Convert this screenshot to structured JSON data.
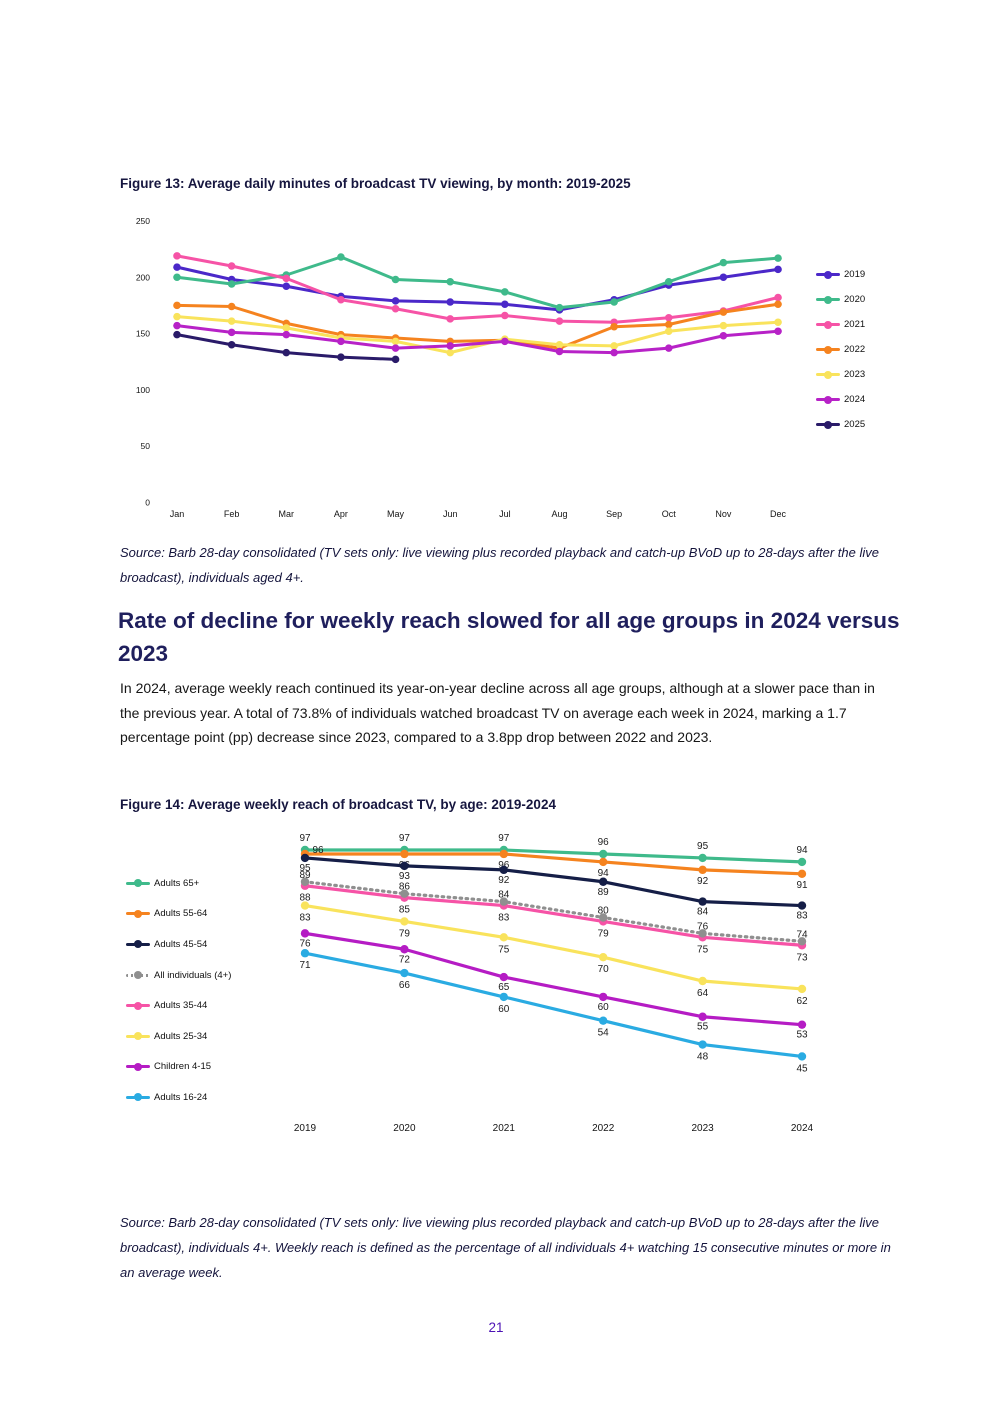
{
  "page": {
    "number": "21"
  },
  "section": {
    "heading": "Rate of decline for weekly reach slowed for all age groups in 2024 versus 2023",
    "body": "In 2024, average weekly reach continued its year-on-year decline across all age groups, although at a slower pace than in the previous year. A total of 73.8% of individuals watched broadcast TV on average each week in 2024, marking a 1.7 percentage point (pp) decrease since 2023, compared to a 3.8pp drop between 2022 and 2023."
  },
  "chart_data": [
    {
      "type": "line",
      "title": "Figure 13: Average daily minutes of broadcast TV viewing, by month: 2019-2025",
      "source": "Source: Barb 28-day consolidated (TV sets only: live viewing plus recorded playback and catch-up BVoD up to 28-days after the live broadcast), individuals aged 4+.",
      "categories": [
        "Jan",
        "Feb",
        "Mar",
        "Apr",
        "May",
        "Jun",
        "Jul",
        "Aug",
        "Sep",
        "Oct",
        "Nov",
        "Dec"
      ],
      "ylabel": "",
      "xlabel": "",
      "ylim": [
        0,
        250
      ],
      "yticks": [
        0,
        50,
        100,
        150,
        200,
        250
      ],
      "grid": false,
      "legend_position": "right",
      "series": [
        {
          "name": "2019",
          "color": "#4b28c9",
          "values": [
            209,
            198,
            192,
            183,
            179,
            178,
            176,
            171,
            180,
            193,
            200,
            207
          ]
        },
        {
          "name": "2020",
          "color": "#3fba8b",
          "values": [
            200,
            194,
            202,
            218,
            198,
            196,
            187,
            173,
            178,
            196,
            213,
            217
          ]
        },
        {
          "name": "2021",
          "color": "#f653a6",
          "values": [
            219,
            210,
            199,
            180,
            172,
            163,
            166,
            161,
            160,
            164,
            170,
            182
          ]
        },
        {
          "name": "2022",
          "color": "#f5831f",
          "values": [
            175,
            174,
            159,
            149,
            146,
            143,
            144,
            137,
            156,
            158,
            169,
            176
          ]
        },
        {
          "name": "2023",
          "color": "#f9e35c",
          "values": [
            165,
            161,
            155,
            146,
            143,
            133,
            145,
            140,
            139,
            152,
            157,
            160
          ]
        },
        {
          "name": "2024",
          "color": "#b722c7",
          "values": [
            157,
            151,
            149,
            143,
            137,
            139,
            143,
            134,
            133,
            137,
            148,
            152
          ]
        },
        {
          "name": "2025",
          "color": "#2a1b69",
          "values": [
            149,
            140,
            133,
            129,
            127
          ]
        }
      ]
    },
    {
      "type": "line",
      "title": "Figure 14: Average weekly reach of broadcast TV, by age: 2019-2024",
      "source": "Source: Barb 28-day consolidated (TV sets only: live viewing plus recorded playback and catch-up BVoD up to 28-days after the live broadcast), individuals 4+. Weekly reach is defined as the percentage of all individuals 4+ watching 15 consecutive minutes or more in an average week.",
      "categories": [
        "2019",
        "2020",
        "2021",
        "2022",
        "2023",
        "2024"
      ],
      "ylabel": "",
      "xlabel": "",
      "ylim": [
        40,
        100
      ],
      "grid": false,
      "legend_position": "left",
      "data_labels": true,
      "series": [
        {
          "name": "Adults 65+",
          "color": "#3fba8b",
          "values": [
            97,
            97,
            97,
            96,
            95,
            94
          ]
        },
        {
          "name": "Adults 55-64",
          "color": "#f5831f",
          "values": [
            96,
            96,
            96,
            94,
            92,
            91
          ]
        },
        {
          "name": "Adults 45-54",
          "color": "#151e47",
          "values": [
            95,
            93,
            92,
            89,
            84,
            83
          ]
        },
        {
          "name": "All individuals (4+)",
          "color": "#8f8f8f",
          "dashed": true,
          "values": [
            89,
            86,
            84,
            80,
            76,
            74
          ]
        },
        {
          "name": "Adults 35-44",
          "color": "#f653a6",
          "values": [
            88,
            85,
            83,
            79,
            75,
            73
          ]
        },
        {
          "name": "Adults 25-34",
          "color": "#f9e35c",
          "values": [
            83,
            79,
            75,
            70,
            64,
            62
          ]
        },
        {
          "name": "Children 4-15",
          "color": "#b51cc4",
          "values": [
            76,
            72,
            65,
            60,
            55,
            53
          ]
        },
        {
          "name": "Adults 16-24",
          "color": "#2aabe2",
          "values": [
            71,
            66,
            60,
            54,
            48,
            45
          ]
        }
      ]
    }
  ]
}
